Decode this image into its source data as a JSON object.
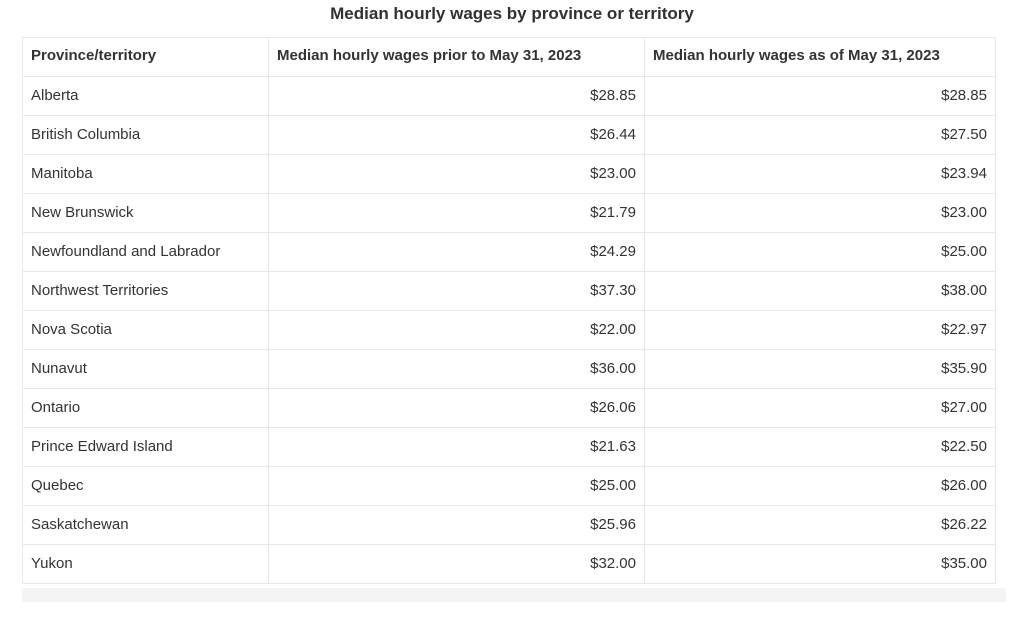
{
  "page": {
    "title": "Median hourly wages by province or territory"
  },
  "table": {
    "columns": [
      "Province/territory",
      "Median hourly wages prior to May 31, 2023",
      "Median hourly wages as of May 31, 2023"
    ],
    "rows": [
      {
        "province": "Alberta",
        "prior": "$28.85",
        "asof": "$28.85"
      },
      {
        "province": "British Columbia",
        "prior": "$26.44",
        "asof": "$27.50"
      },
      {
        "province": "Manitoba",
        "prior": "$23.00",
        "asof": "$23.94"
      },
      {
        "province": "New Brunswick",
        "prior": "$21.79",
        "asof": "$23.00"
      },
      {
        "province": "Newfoundland and Labrador",
        "prior": "$24.29",
        "asof": "$25.00"
      },
      {
        "province": "Northwest Territories",
        "prior": "$37.30",
        "asof": "$38.00"
      },
      {
        "province": "Nova Scotia",
        "prior": "$22.00",
        "asof": "$22.97"
      },
      {
        "province": "Nunavut",
        "prior": "$36.00",
        "asof": "$35.90"
      },
      {
        "province": "Ontario",
        "prior": "$26.06",
        "asof": "$27.00"
      },
      {
        "province": "Prince Edward Island",
        "prior": "$21.63",
        "asof": "$22.50"
      },
      {
        "province": "Quebec",
        "prior": "$25.00",
        "asof": "$26.00"
      },
      {
        "province": "Saskatchewan",
        "prior": "$25.96",
        "asof": "$26.22"
      },
      {
        "province": "Yukon",
        "prior": "$32.00",
        "asof": "$35.00"
      }
    ]
  },
  "colors": {
    "text": "#333333",
    "table_border": "#e8e8e8",
    "next_section_edge": "#f4f4f4"
  }
}
